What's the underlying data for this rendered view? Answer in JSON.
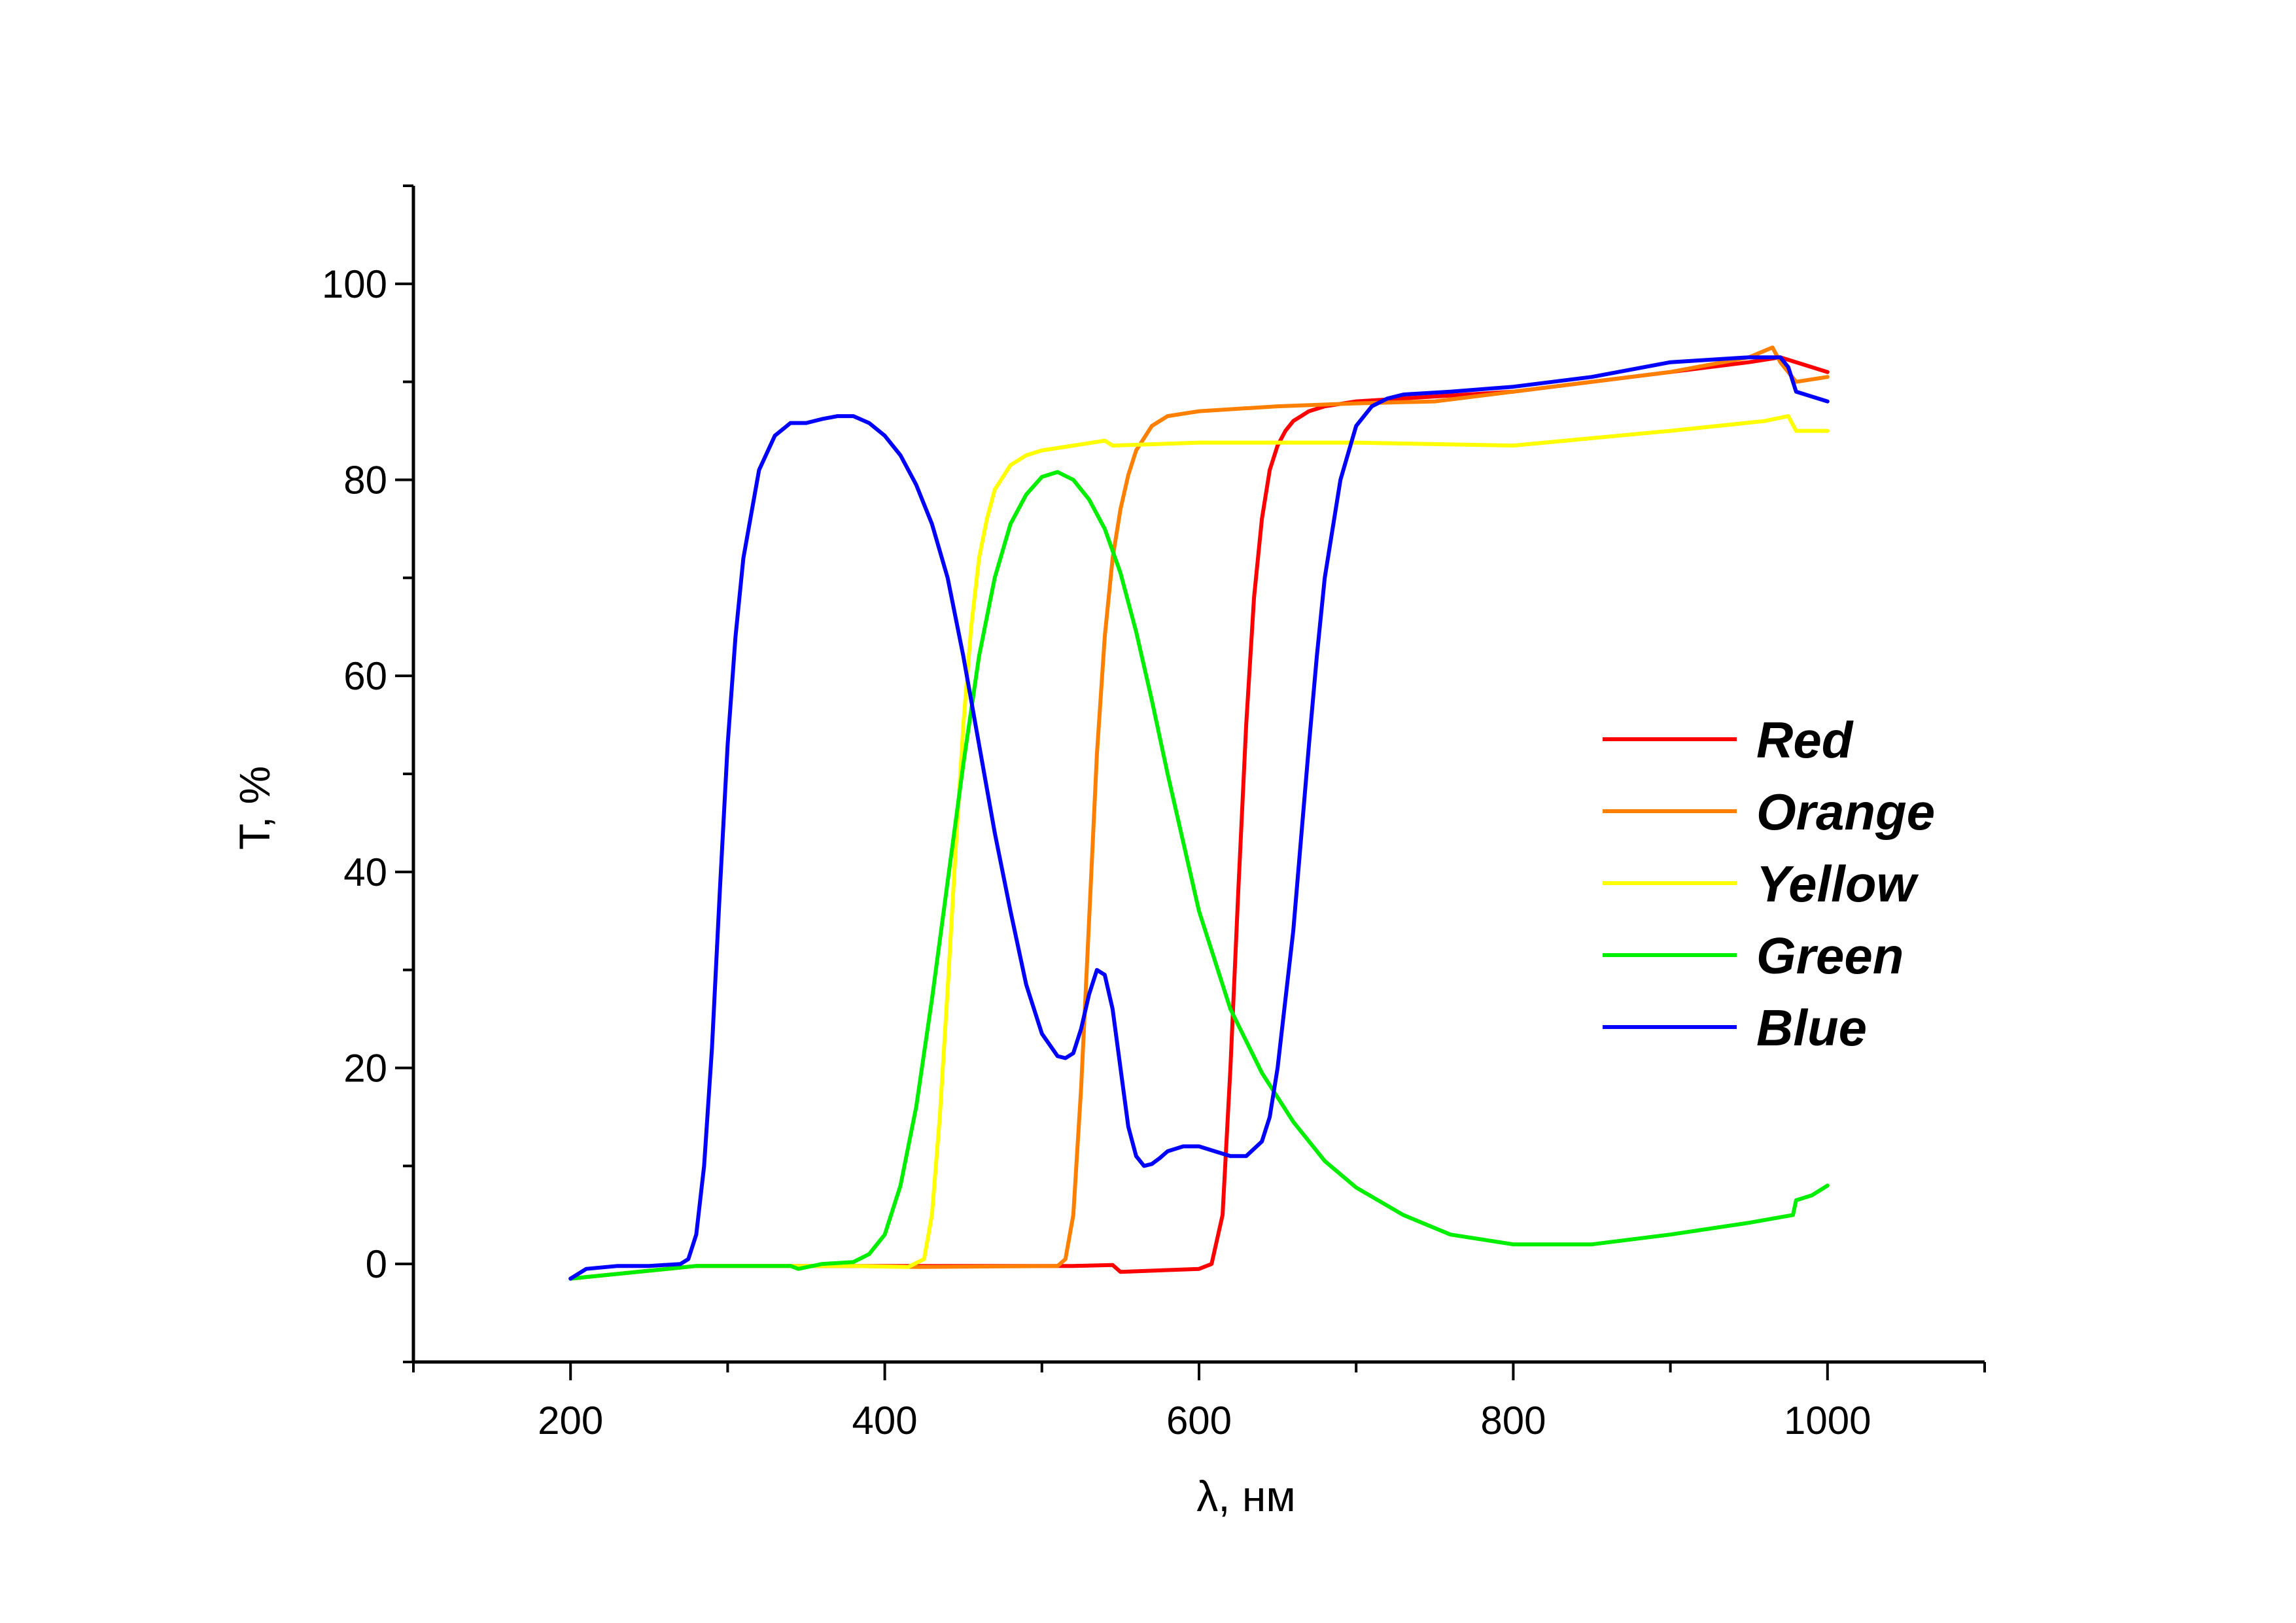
{
  "chart_data": {
    "type": "line",
    "title": "",
    "xlabel": "λ, нм",
    "ylabel": "T, %",
    "xlim": [
      100,
      1100
    ],
    "ylim": [
      -10,
      110
    ],
    "xticks": [
      200,
      400,
      600,
      800,
      1000
    ],
    "yticks": [
      0,
      20,
      40,
      60,
      80,
      100
    ],
    "grid": false,
    "legend_position": "right",
    "series": [
      {
        "name": "Red",
        "color": "#ff0000",
        "x": [
          200,
          280,
          520,
          545,
          550,
          600,
          608,
          615,
          620,
          625,
          630,
          635,
          640,
          645,
          650,
          655,
          660,
          670,
          680,
          700,
          750,
          800,
          850,
          900,
          950,
          970,
          1000
        ],
        "y": [
          -1.5,
          -0.2,
          -0.2,
          -0.1,
          -0.8,
          -0.5,
          0,
          5,
          20,
          38,
          55,
          68,
          76,
          81,
          83.5,
          85,
          86,
          87,
          87.5,
          88,
          88.5,
          89,
          90,
          91,
          92,
          92.5,
          91
        ]
      },
      {
        "name": "Orange",
        "color": "#ff8000",
        "x": [
          200,
          280,
          340,
          380,
          420,
          510,
          515,
          520,
          525,
          530,
          535,
          540,
          545,
          550,
          555,
          560,
          570,
          580,
          600,
          650,
          700,
          750,
          800,
          850,
          900,
          950,
          965,
          970,
          980,
          1000
        ],
        "y": [
          -1.5,
          -0.2,
          -0.2,
          -0.2,
          -0.3,
          -0.2,
          0.5,
          5,
          18,
          35,
          52,
          64,
          72,
          77,
          80.5,
          83,
          85.5,
          86.5,
          87,
          87.5,
          87.8,
          88,
          89,
          90,
          91,
          92.5,
          93.5,
          92,
          90,
          90.5
        ]
      },
      {
        "name": "Yellow",
        "color": "#ffff00",
        "x": [
          200,
          280,
          380,
          415,
          425,
          430,
          435,
          440,
          445,
          450,
          455,
          460,
          465,
          470,
          480,
          490,
          500,
          520,
          540,
          545,
          600,
          700,
          800,
          900,
          960,
          975,
          980,
          1000
        ],
        "y": [
          -1.5,
          -0.2,
          -0.2,
          -0.3,
          0.5,
          5,
          15,
          28,
          42,
          55,
          65,
          72,
          76,
          79,
          81.5,
          82.5,
          83,
          83.5,
          84,
          83.5,
          83.8,
          83.8,
          83.5,
          85,
          86,
          86.5,
          85,
          85
        ]
      },
      {
        "name": "Green",
        "color": "#00ee00",
        "x": [
          200,
          280,
          340,
          345,
          360,
          380,
          390,
          400,
          410,
          420,
          430,
          440,
          450,
          460,
          470,
          480,
          490,
          500,
          510,
          520,
          530,
          540,
          550,
          560,
          570,
          580,
          600,
          620,
          640,
          660,
          680,
          700,
          730,
          760,
          800,
          850,
          900,
          950,
          978,
          980,
          990,
          1000
        ],
        "y": [
          -1.5,
          -0.2,
          -0.2,
          -0.5,
          0,
          0.2,
          1,
          3,
          8,
          16,
          27,
          39,
          51,
          62,
          70,
          75.5,
          78.5,
          80.3,
          80.8,
          80,
          78,
          75,
          70.5,
          64.5,
          57.5,
          50,
          36,
          26,
          19.5,
          14.5,
          10.5,
          7.8,
          5,
          3,
          2,
          2,
          3,
          4.2,
          5,
          6.5,
          7,
          8
        ]
      },
      {
        "name": "Blue",
        "color": "#0000ff",
        "x": [
          200,
          210,
          230,
          250,
          270,
          275,
          280,
          285,
          290,
          295,
          300,
          305,
          310,
          320,
          330,
          340,
          350,
          360,
          370,
          380,
          390,
          400,
          410,
          420,
          430,
          440,
          450,
          460,
          470,
          480,
          490,
          500,
          510,
          515,
          520,
          525,
          530,
          535,
          540,
          545,
          550,
          555,
          560,
          565,
          570,
          575,
          580,
          590,
          600,
          610,
          620,
          630,
          640,
          645,
          650,
          660,
          670,
          675,
          680,
          690,
          700,
          710,
          720,
          730,
          740,
          760,
          800,
          850,
          900,
          950,
          970,
          975,
          980,
          1000
        ],
        "y": [
          -1.5,
          -0.5,
          -0.2,
          -0.2,
          0,
          0.5,
          3,
          10,
          22,
          38,
          53,
          64,
          72,
          81,
          84.5,
          85.8,
          85.8,
          86.2,
          86.5,
          86.5,
          85.8,
          84.5,
          82.5,
          79.5,
          75.5,
          70,
          62,
          53,
          44,
          36,
          28.5,
          23.5,
          21.2,
          21,
          21.5,
          24,
          27.5,
          30,
          29.5,
          26,
          20,
          14,
          11,
          10,
          10.2,
          10.8,
          11.5,
          12,
          12,
          11.5,
          11,
          11,
          12.5,
          15,
          20,
          34,
          53,
          62,
          70,
          80,
          85.5,
          87.5,
          88.3,
          88.7,
          88.8,
          89,
          89.5,
          90.5,
          92,
          92.5,
          92.5,
          91.5,
          89,
          88
        ]
      }
    ]
  }
}
